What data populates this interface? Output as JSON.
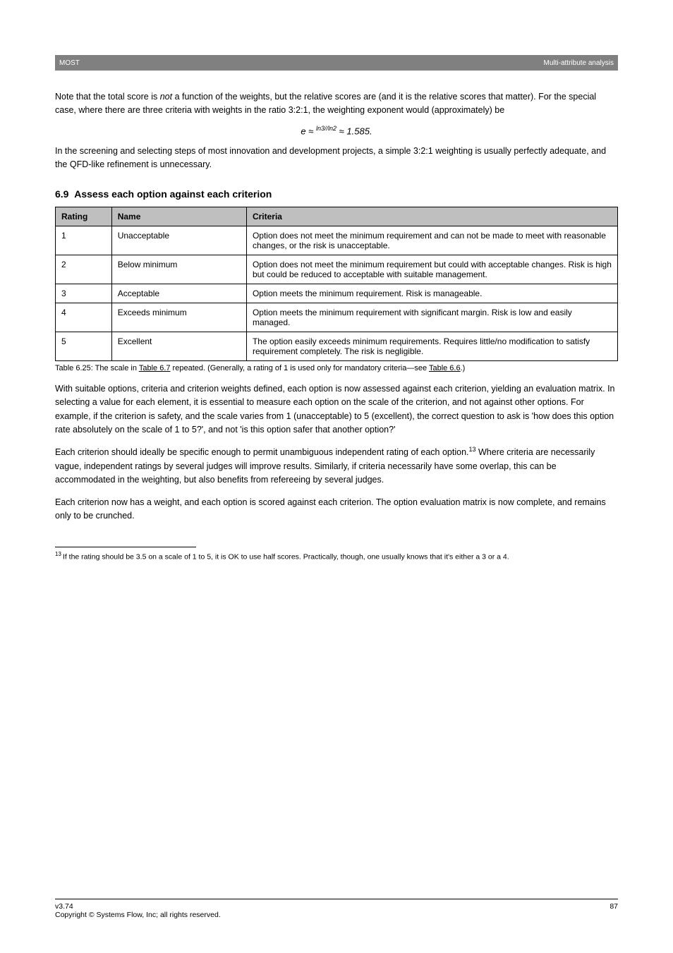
{
  "header": {
    "left": "MOST",
    "right": "Multi-attribute analysis"
  },
  "intro": {
    "p1_a": "Note that the total score is ",
    "p1_b": "not",
    "p1_c": " a function of the weights, but the relative scores are (and it is the relative scores that matter). For the special case, where there are three criteria with weights in the ratio 3:2:1, the weighting exponent would (approximately) be",
    "formula": "e ≈ 3 ≈ 1.585.",
    "formula_sup_a": "ln3",
    "formula_sup_b": "/ln2",
    "p2": "In the screening and selecting steps of most innovation and development projects, a simple 3:2:1 weighting is usually perfectly adequate, and the QFD-like refinement is unnecessary."
  },
  "section": {
    "num": "6.9",
    "title": "Assess each option against each criterion"
  },
  "table": {
    "columns": [
      "Rating",
      "Name",
      "Criteria"
    ],
    "rows": [
      [
        "1",
        "Unacceptable",
        "Option does not meet the minimum requirement and can not be made to meet with reasonable changes, or the risk is unacceptable."
      ],
      [
        "2",
        "Below minimum",
        "Option does not meet the minimum requirement but could with acceptable changes. Risk is high but could be reduced to acceptable with suitable management."
      ],
      [
        "3",
        "Acceptable",
        "Option meets the minimum requirement. Risk is manageable."
      ],
      [
        "4",
        "Exceeds minimum",
        "Option meets the minimum requirement with significant margin. Risk is low and easily managed."
      ],
      [
        "5",
        "Excellent",
        "The option easily exceeds minimum requirements. Requires little/no modification to satisfy requirement completely. The risk is negligible."
      ]
    ],
    "caption_a": "Table 6.25: The scale in ",
    "caption_link": "Table 6.7",
    "caption_b": " repeated. (Generally, a rating of 1 is used only for mandatory criteria—see ",
    "caption_link2": "Table 6.6",
    "caption_c": ".)"
  },
  "body": {
    "p1": "With suitable options, criteria and criterion weights defined, each option is now assessed against each criterion, yielding an evaluation matrix. In selecting a value for each element, it is essential to measure each option on the scale of the criterion, and not against other options. For example, if the criterion is safety, and the scale varies from 1 (unacceptable) to 5 (excellent), the correct question to ask is 'how does this option rate absolutely on the scale of 1 to 5?', and not 'is this option safer that another option?'",
    "p2_a": "Each criterion should ideally be specific enough to permit unambiguous independent rating of each option.",
    "fn_mark": "13",
    "p2_b": " Where criteria are necessarily vague, independent ratings by several judges will improve results. Similarly, if criteria necessarily have some overlap, this can be accommodated in the weighting, but also benefits from refereeing by several judges.",
    "p3": "Each criterion now has a weight, and each option is scored against each criterion. The option evaluation matrix is now complete, and remains only to be crunched."
  },
  "footnote": {
    "num": "13",
    "text": "If the rating should be 3.5 on a scale of 1 to 5, it is OK to use half scores. Practically, though, one usually knows that it's either a 3 or a 4."
  },
  "footer": {
    "version": "v3.74",
    "copyright": "Copyright © Systems Flow, Inc; all rights reserved.",
    "page": "87"
  }
}
